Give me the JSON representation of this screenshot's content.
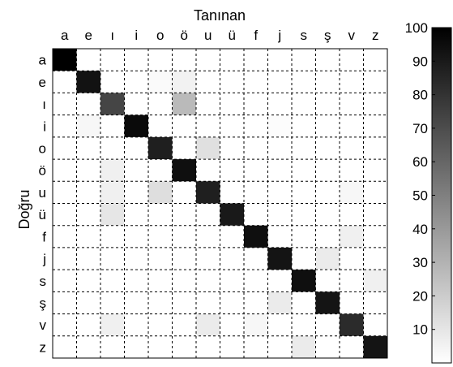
{
  "chart_data": {
    "type": "heatmap",
    "title": "",
    "xlabel": "Tanınan",
    "ylabel": "Doğru",
    "x_categories": [
      "a",
      "e",
      "ı",
      "i",
      "o",
      "ö",
      "u",
      "ü",
      "f",
      "j",
      "s",
      "ş",
      "v",
      "z"
    ],
    "y_categories": [
      "a",
      "e",
      "ı",
      "i",
      "o",
      "ö",
      "u",
      "ü",
      "f",
      "j",
      "s",
      "ş",
      "v",
      "z"
    ],
    "values": [
      [
        100,
        0,
        0,
        0,
        0,
        0,
        0,
        0,
        0,
        0,
        0,
        0,
        0,
        0
      ],
      [
        0,
        93,
        0,
        0,
        2,
        5,
        0,
        0,
        0,
        0,
        0,
        0,
        0,
        0
      ],
      [
        0,
        0,
        73,
        0,
        0,
        27,
        0,
        0,
        0,
        0,
        0,
        0,
        0,
        0
      ],
      [
        0,
        3,
        0,
        96,
        0,
        0,
        0,
        0,
        0,
        1,
        0,
        0,
        0,
        0
      ],
      [
        0,
        0,
        0,
        0,
        88,
        0,
        12,
        0,
        0,
        0,
        0,
        0,
        0,
        0
      ],
      [
        0,
        0,
        6,
        0,
        0,
        94,
        0,
        0,
        0,
        0,
        0,
        0,
        0,
        0
      ],
      [
        0,
        0,
        6,
        0,
        13,
        0,
        88,
        0,
        0,
        0,
        0,
        0,
        3,
        0
      ],
      [
        0,
        0,
        10,
        0,
        0,
        0,
        0,
        90,
        0,
        0,
        0,
        0,
        0,
        0
      ],
      [
        0,
        0,
        0,
        0,
        0,
        0,
        0,
        0,
        94,
        0,
        0,
        0,
        6,
        0
      ],
      [
        0,
        0,
        0,
        0,
        0,
        0,
        0,
        0,
        0,
        92,
        0,
        8,
        0,
        0
      ],
      [
        0,
        0,
        0,
        0,
        0,
        0,
        0,
        0,
        0,
        0,
        94,
        0,
        0,
        6
      ],
      [
        0,
        0,
        0,
        0,
        0,
        0,
        0,
        0,
        0,
        8,
        0,
        92,
        0,
        0
      ],
      [
        0,
        0,
        6,
        0,
        0,
        0,
        8,
        0,
        3,
        0,
        0,
        0,
        83,
        0
      ],
      [
        0,
        0,
        0,
        0,
        0,
        0,
        0,
        0,
        0,
        0,
        8,
        0,
        0,
        92
      ]
    ],
    "colorbar": {
      "min": 0,
      "max": 100,
      "ticks": [
        10,
        20,
        30,
        40,
        50,
        60,
        70,
        80,
        90,
        100
      ],
      "colormap": "gray-reversed"
    },
    "grid": "dashed"
  }
}
